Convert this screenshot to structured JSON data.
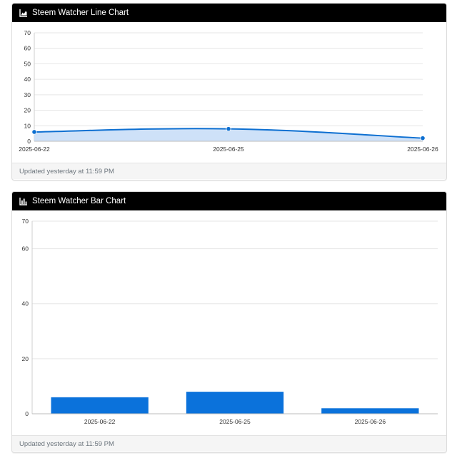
{
  "line_card": {
    "title": "Steem Watcher Line Chart",
    "icon": "area-chart-icon",
    "footer": "Updated yesterday at 11:59 PM"
  },
  "bar_card": {
    "title": "Steem Watcher Bar Chart",
    "icon": "bar-chart-icon",
    "footer": "Updated yesterday at 11:59 PM"
  },
  "colors": {
    "header_bg": "#000000",
    "header_text": "#ffffff",
    "line_series": "#0d6fd1",
    "area_fill": "#c9def7",
    "bar_series": "#0b72db",
    "grid": "#e6e6e6",
    "footer_text": "#6c757d"
  },
  "chart_data": [
    {
      "type": "area",
      "title": "Steem Watcher Line Chart",
      "categories": [
        "2025-06-22",
        "2025-06-25",
        "2025-06-26"
      ],
      "values": [
        6,
        8,
        2
      ],
      "ylim": [
        0,
        70
      ],
      "yticks": [
        0,
        10,
        20,
        30,
        40,
        50,
        60,
        70
      ],
      "grid": true,
      "smooth": true
    },
    {
      "type": "bar",
      "title": "Steem Watcher Bar Chart",
      "categories": [
        "2025-06-22",
        "2025-06-25",
        "2025-06-26"
      ],
      "values": [
        6,
        8,
        2
      ],
      "ylim": [
        0,
        70
      ],
      "yticks": [
        0,
        20,
        40,
        60,
        70
      ],
      "grid": true
    }
  ]
}
